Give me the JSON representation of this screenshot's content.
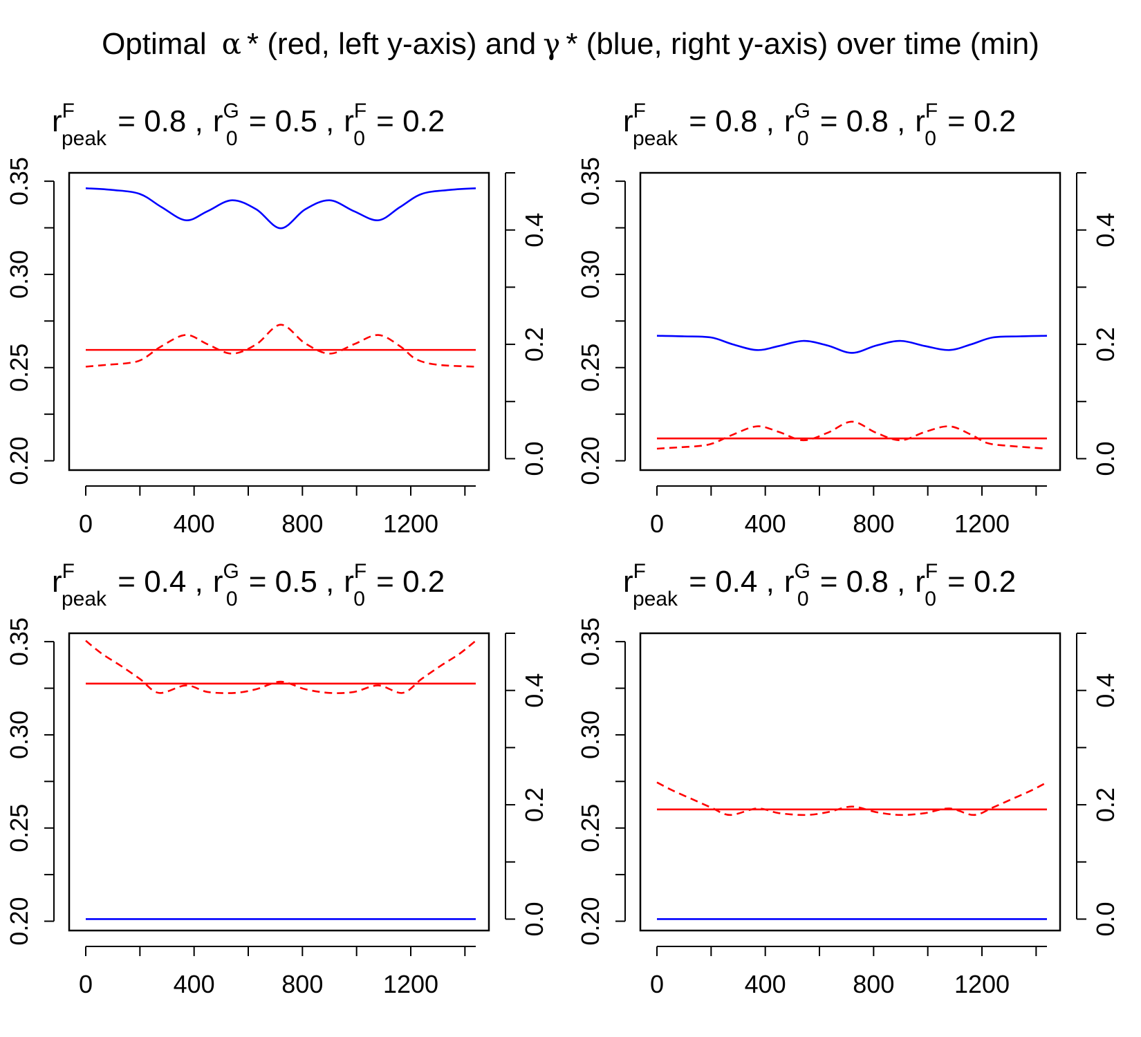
{
  "title": {
    "pre": "Optimal",
    "alpha_symbol": "α",
    "mid": "* (red, left y-axis) and",
    "gamma_symbol": "γ",
    "post": "* (blue, right y-axis) over time (min)"
  },
  "colors": {
    "alpha": "#ff0000",
    "gamma": "#0000ff",
    "axis": "#000000"
  },
  "chart_data": [
    {
      "type": "line",
      "title_params": [
        {
          "base": "r",
          "sup": "F",
          "sub": "peak",
          "value": "0.8"
        },
        {
          "base": "r",
          "sup": "G",
          "sub": "0",
          "value": "0.5"
        },
        {
          "base": "r",
          "sup": "F",
          "sub": "0",
          "value": "0.2"
        }
      ],
      "x_ticks": [
        0,
        400,
        800,
        1200
      ],
      "left_y_ticks": [
        "0.20",
        "0.25",
        "0.30",
        "0.35"
      ],
      "right_y_ticks": [
        "0.0",
        "0.2",
        "0.4"
      ],
      "xlim": [
        0,
        1440
      ],
      "left_ylim": [
        0.195,
        0.3545
      ],
      "right_ylim": [
        -0.02,
        0.5
      ],
      "series": [
        {
          "axis": "left",
          "style": "solid",
          "color": "#ff0000",
          "x": [
            0,
            1440
          ],
          "y": [
            0.2595,
            0.2595
          ]
        },
        {
          "axis": "left",
          "style": "dashed",
          "color": "#ff0000",
          "x": [
            0,
            80,
            160,
            210,
            280,
            370,
            450,
            540,
            630,
            720,
            810,
            900,
            990,
            1080,
            1160,
            1220,
            1300,
            1440
          ],
          "y": [
            0.2505,
            0.2515,
            0.2525,
            0.2545,
            0.2615,
            0.2675,
            0.2625,
            0.2575,
            0.2625,
            0.273,
            0.263,
            0.2575,
            0.2625,
            0.2675,
            0.2615,
            0.2545,
            0.2515,
            0.2505
          ]
        },
        {
          "axis": "right",
          "style": "solid",
          "color": "#0000ff",
          "x": [
            0,
            100,
            200,
            280,
            370,
            450,
            540,
            630,
            720,
            810,
            900,
            990,
            1080,
            1160,
            1240,
            1340,
            1440
          ],
          "y": [
            0.473,
            0.47,
            0.463,
            0.44,
            0.417,
            0.433,
            0.452,
            0.436,
            0.403,
            0.436,
            0.452,
            0.433,
            0.417,
            0.44,
            0.463,
            0.47,
            0.473
          ]
        }
      ]
    },
    {
      "type": "line",
      "title_params": [
        {
          "base": "r",
          "sup": "F",
          "sub": "peak",
          "value": "0.8"
        },
        {
          "base": "r",
          "sup": "G",
          "sub": "0",
          "value": "0.8"
        },
        {
          "base": "r",
          "sup": "F",
          "sub": "0",
          "value": "0.2"
        }
      ],
      "x_ticks": [
        0,
        400,
        800,
        1200
      ],
      "left_y_ticks": [
        "0.20",
        "0.25",
        "0.30",
        "0.35"
      ],
      "right_y_ticks": [
        "0.0",
        "0.2",
        "0.4"
      ],
      "xlim": [
        0,
        1440
      ],
      "left_ylim": [
        0.195,
        0.3545
      ],
      "right_ylim": [
        -0.02,
        0.5
      ],
      "series": [
        {
          "axis": "left",
          "style": "solid",
          "color": "#ff0000",
          "x": [
            0,
            1440
          ],
          "y": [
            0.212,
            0.212
          ]
        },
        {
          "axis": "left",
          "style": "dashed",
          "color": "#ff0000",
          "x": [
            0,
            80,
            160,
            210,
            280,
            370,
            450,
            540,
            630,
            720,
            810,
            900,
            990,
            1080,
            1160,
            1220,
            1300,
            1440
          ],
          "y": [
            0.2065,
            0.2072,
            0.208,
            0.2095,
            0.214,
            0.2185,
            0.2155,
            0.211,
            0.215,
            0.221,
            0.215,
            0.211,
            0.2155,
            0.2185,
            0.214,
            0.2095,
            0.208,
            0.2065
          ]
        },
        {
          "axis": "right",
          "style": "solid",
          "color": "#0000ff",
          "x": [
            0,
            100,
            200,
            280,
            370,
            450,
            540,
            630,
            720,
            810,
            900,
            990,
            1080,
            1160,
            1240,
            1340,
            1440
          ],
          "y": [
            0.215,
            0.214,
            0.212,
            0.2,
            0.19,
            0.197,
            0.206,
            0.198,
            0.185,
            0.198,
            0.206,
            0.197,
            0.19,
            0.2,
            0.212,
            0.214,
            0.215
          ]
        }
      ]
    },
    {
      "type": "line",
      "title_params": [
        {
          "base": "r",
          "sup": "F",
          "sub": "peak",
          "value": "0.4"
        },
        {
          "base": "r",
          "sup": "G",
          "sub": "0",
          "value": "0.5"
        },
        {
          "base": "r",
          "sup": "F",
          "sub": "0",
          "value": "0.2"
        }
      ],
      "x_ticks": [
        0,
        400,
        800,
        1200
      ],
      "left_y_ticks": [
        "0.20",
        "0.25",
        "0.30",
        "0.35"
      ],
      "right_y_ticks": [
        "0.0",
        "0.2",
        "0.4"
      ],
      "xlim": [
        0,
        1440
      ],
      "left_ylim": [
        0.195,
        0.3545
      ],
      "right_ylim": [
        -0.02,
        0.5
      ],
      "series": [
        {
          "axis": "left",
          "style": "solid",
          "color": "#ff0000",
          "x": [
            0,
            1440
          ],
          "y": [
            0.3275,
            0.3275
          ]
        },
        {
          "axis": "left",
          "style": "dashed",
          "color": "#ff0000",
          "x": [
            0,
            60,
            130,
            200,
            270,
            370,
            450,
            550,
            630,
            720,
            810,
            900,
            990,
            1080,
            1170,
            1240,
            1310,
            1380,
            1440
          ],
          "y": [
            0.3505,
            0.3435,
            0.337,
            0.33,
            0.3225,
            0.3265,
            0.323,
            0.3225,
            0.3245,
            0.3285,
            0.3245,
            0.3225,
            0.323,
            0.3265,
            0.3225,
            0.33,
            0.337,
            0.3435,
            0.3505
          ]
        },
        {
          "axis": "right",
          "style": "solid",
          "color": "#0000ff",
          "x": [
            0,
            1440
          ],
          "y": [
            0.0,
            0.0
          ]
        }
      ]
    },
    {
      "type": "line",
      "title_params": [
        {
          "base": "r",
          "sup": "F",
          "sub": "peak",
          "value": "0.4"
        },
        {
          "base": "r",
          "sup": "G",
          "sub": "0",
          "value": "0.8"
        },
        {
          "base": "r",
          "sup": "F",
          "sub": "0",
          "value": "0.2"
        }
      ],
      "x_ticks": [
        0,
        400,
        800,
        1200
      ],
      "left_y_ticks": [
        "0.20",
        "0.25",
        "0.30",
        "0.35"
      ],
      "right_y_ticks": [
        "0.0",
        "0.2",
        "0.4"
      ],
      "xlim": [
        0,
        1440
      ],
      "left_ylim": [
        0.195,
        0.3545
      ],
      "right_ylim": [
        -0.02,
        0.5
      ],
      "series": [
        {
          "axis": "left",
          "style": "solid",
          "color": "#ff0000",
          "x": [
            0,
            1440
          ],
          "y": [
            0.26,
            0.26
          ]
        },
        {
          "axis": "left",
          "style": "dashed",
          "color": "#ff0000",
          "x": [
            0,
            60,
            130,
            200,
            270,
            370,
            450,
            550,
            630,
            720,
            810,
            900,
            990,
            1080,
            1170,
            1240,
            1310,
            1380,
            1440
          ],
          "y": [
            0.2745,
            0.27,
            0.2655,
            0.261,
            0.257,
            0.2605,
            0.258,
            0.257,
            0.2585,
            0.2615,
            0.2585,
            0.257,
            0.258,
            0.2605,
            0.257,
            0.261,
            0.2655,
            0.27,
            0.2745
          ]
        },
        {
          "axis": "right",
          "style": "solid",
          "color": "#0000ff",
          "x": [
            0,
            1440
          ],
          "y": [
            0.0,
            0.0
          ]
        }
      ]
    }
  ]
}
